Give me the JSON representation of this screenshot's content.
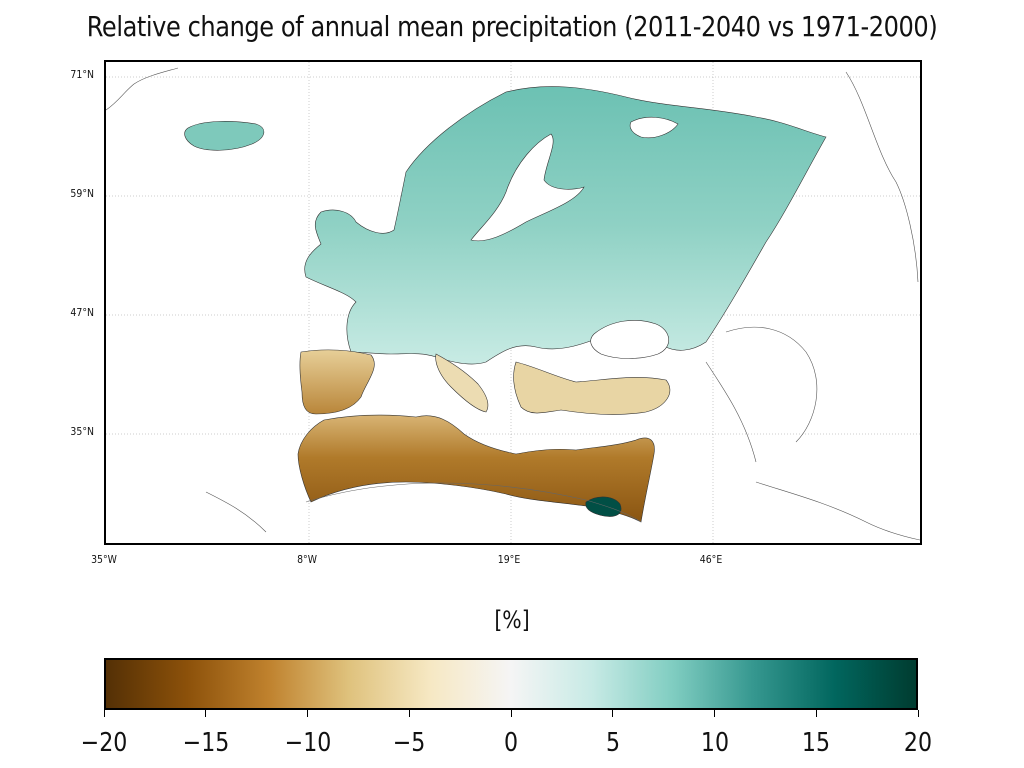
{
  "title": "Relative change of annual mean precipitation (2011-2040 vs 1971-2000)",
  "map": {
    "lat_labels": [
      "71°N",
      "59°N",
      "47°N",
      "35°N"
    ],
    "lon_labels": [
      "35°W",
      "8°W",
      "19°E",
      "46°E"
    ]
  },
  "colorbar": {
    "label": "[%]",
    "ticks": [
      "−20",
      "−15",
      "−10",
      "−5",
      "0",
      "5",
      "10",
      "15",
      "20"
    ],
    "min": -20,
    "max": 20,
    "colormap": "BrBG",
    "stops": [
      "#543005",
      "#8c510a",
      "#bf812d",
      "#dfc27d",
      "#f6e8c3",
      "#f5f5f5",
      "#c7eae5",
      "#80cdc1",
      "#35978f",
      "#01665e",
      "#003c30"
    ]
  }
}
